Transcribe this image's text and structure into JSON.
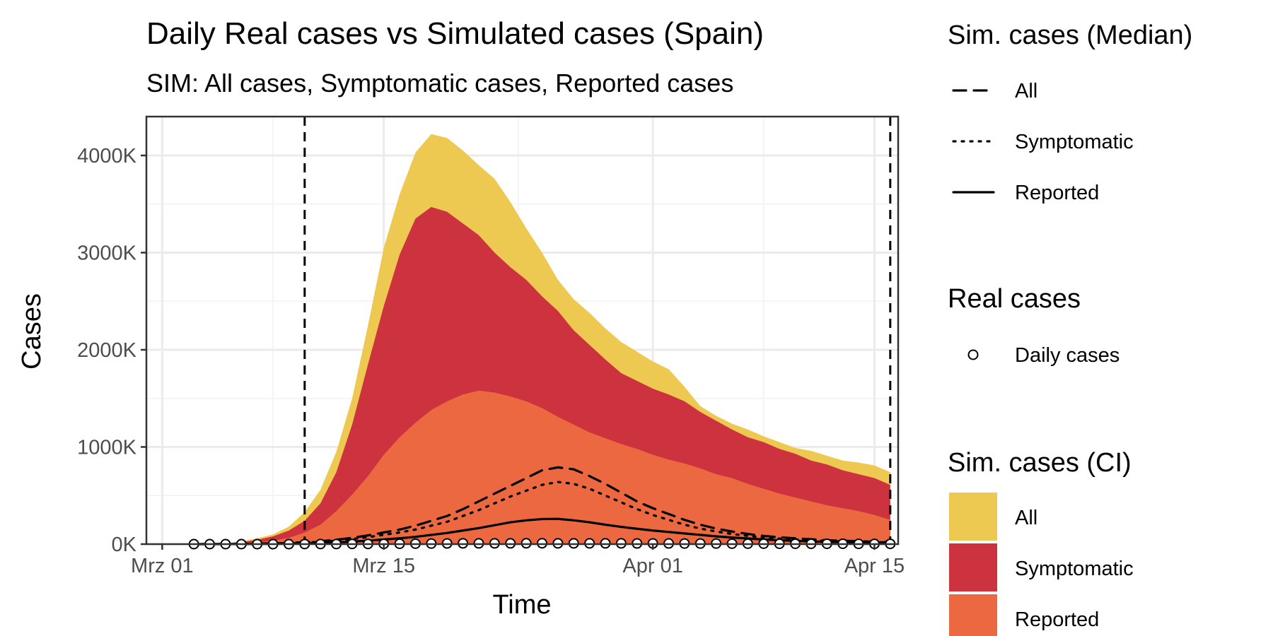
{
  "chart_data": {
    "type": "area",
    "title": "Daily Real cases vs Simulated cases (Spain)",
    "subtitle": "SIM: All cases, Symptomatic cases, Reported cases",
    "xlabel": "Time",
    "ylabel": "Cases",
    "x_axis": {
      "start_date": "2020-03-01",
      "range_days": [
        -1,
        46.5
      ],
      "ticks": [
        {
          "day": 0,
          "label": "Mrz 01"
        },
        {
          "day": 14,
          "label": "Mrz 15"
        },
        {
          "day": 31,
          "label": "Apr 01"
        },
        {
          "day": 45,
          "label": "Apr 15"
        }
      ]
    },
    "y_axis": {
      "range": [
        0,
        4400
      ],
      "unit": "K",
      "ticks": [
        {
          "value": 0,
          "label": "0K"
        },
        {
          "value": 1000,
          "label": "1000K"
        },
        {
          "value": 2000,
          "label": "2000K"
        },
        {
          "value": 3000,
          "label": "3000K"
        },
        {
          "value": 4000,
          "label": "4000K"
        }
      ]
    },
    "grid": true,
    "vlines": [
      9,
      46
    ],
    "legend_position": "right",
    "days": [
      2,
      3,
      4,
      5,
      6,
      7,
      8,
      9,
      10,
      11,
      12,
      13,
      14,
      15,
      16,
      17,
      18,
      19,
      20,
      21,
      22,
      23,
      24,
      25,
      26,
      27,
      28,
      29,
      30,
      31,
      32,
      33,
      34,
      35,
      36,
      37,
      38,
      39,
      40,
      41,
      42,
      43,
      44,
      45,
      46
    ],
    "ribbons": [
      {
        "name": "All",
        "color": "#EDC951",
        "values": [
          2,
          5,
          10,
          30,
          60,
          100,
          180,
          330,
          560,
          950,
          1500,
          2250,
          3050,
          3600,
          4030,
          4220,
          4180,
          4050,
          3900,
          3760,
          3520,
          3250,
          3000,
          2720,
          2520,
          2380,
          2220,
          2080,
          1980,
          1880,
          1800,
          1620,
          1420,
          1320,
          1240,
          1180,
          1110,
          1050,
          990,
          960,
          910,
          860,
          840,
          810,
          740
        ]
      },
      {
        "name": "Symptomatic",
        "color": "#CC333F",
        "values": [
          1,
          3,
          7,
          20,
          45,
          80,
          140,
          240,
          420,
          740,
          1230,
          1850,
          2450,
          2980,
          3350,
          3470,
          3420,
          3300,
          3180,
          3000,
          2850,
          2720,
          2550,
          2400,
          2200,
          2050,
          1900,
          1760,
          1680,
          1600,
          1540,
          1470,
          1360,
          1270,
          1180,
          1100,
          1050,
          980,
          930,
          860,
          820,
          760,
          720,
          680,
          610
        ]
      },
      {
        "name": "Reported",
        "color": "#EB6841",
        "values": [
          0,
          1,
          3,
          8,
          18,
          35,
          65,
          120,
          200,
          340,
          510,
          700,
          920,
          1100,
          1250,
          1380,
          1470,
          1540,
          1580,
          1560,
          1520,
          1470,
          1400,
          1310,
          1230,
          1150,
          1090,
          1030,
          980,
          920,
          870,
          830,
          780,
          720,
          680,
          620,
          570,
          520,
          480,
          440,
          400,
          370,
          340,
          300,
          250
        ]
      }
    ],
    "median_lines": [
      {
        "name": "All",
        "style": "dashed",
        "values": [
          0,
          1,
          2,
          3,
          5,
          8,
          12,
          20,
          30,
          45,
          65,
          90,
          120,
          150,
          190,
          240,
          290,
          360,
          440,
          520,
          600,
          680,
          760,
          790,
          770,
          700,
          620,
          530,
          440,
          370,
          310,
          250,
          200,
          160,
          130,
          105,
          85,
          70,
          60,
          50,
          40,
          35,
          30,
          25,
          22
        ]
      },
      {
        "name": "Symptomatic",
        "style": "dotted",
        "values": [
          0,
          1,
          1,
          2,
          4,
          6,
          10,
          16,
          24,
          36,
          52,
          72,
          96,
          120,
          150,
          190,
          230,
          290,
          350,
          420,
          490,
          550,
          610,
          640,
          620,
          570,
          500,
          430,
          360,
          300,
          250,
          200,
          160,
          130,
          105,
          85,
          70,
          57,
          48,
          40,
          33,
          28,
          24,
          20,
          18
        ]
      },
      {
        "name": "Reported",
        "style": "solid",
        "values": [
          0,
          0,
          1,
          1,
          2,
          3,
          5,
          8,
          12,
          18,
          26,
          36,
          48,
          60,
          75,
          95,
          115,
          140,
          165,
          195,
          225,
          245,
          258,
          260,
          245,
          225,
          200,
          178,
          158,
          140,
          125,
          110,
          95,
          80,
          68,
          58,
          48,
          40,
          34,
          28,
          24,
          20,
          17,
          15,
          12
        ]
      }
    ],
    "real_cases": {
      "name": "Daily cases",
      "values": [
        0,
        0,
        0,
        0,
        0,
        0,
        0,
        1,
        1,
        1,
        2,
        2,
        3,
        4,
        5,
        6,
        7,
        8,
        8,
        8,
        8,
        9,
        9,
        8,
        8,
        8,
        8,
        8,
        7,
        7,
        7,
        6,
        6,
        6,
        5,
        5,
        5,
        4,
        4,
        4,
        4,
        4,
        3,
        3,
        3
      ]
    },
    "legends": [
      {
        "title": "Sim. cases (Median)",
        "items": [
          {
            "label": "All",
            "style": "dashed"
          },
          {
            "label": "Symptomatic",
            "style": "dotted"
          },
          {
            "label": "Reported",
            "style": "solid"
          }
        ]
      },
      {
        "title": "Real cases",
        "items": [
          {
            "label": "Daily cases",
            "style": "circle"
          }
        ]
      },
      {
        "title": "Sim. cases (CI)",
        "items": [
          {
            "label": "All",
            "color": "#EDC951"
          },
          {
            "label": "Symptomatic",
            "color": "#CC333F"
          },
          {
            "label": "Reported",
            "color": "#EB6841"
          }
        ]
      }
    ]
  }
}
